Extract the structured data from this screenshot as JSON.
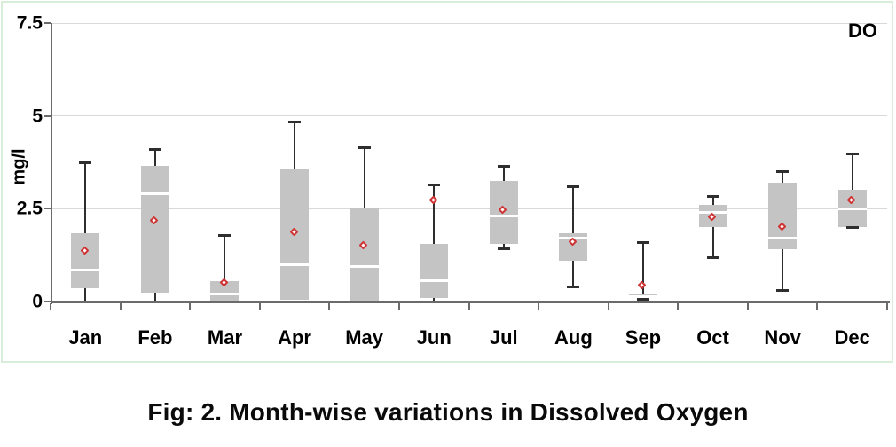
{
  "figure": {
    "caption": "Fig: 2. Month-wise variations in Dissolved Oxygen"
  },
  "chart_data": {
    "type": "boxplot",
    "series_label": "DO",
    "ylabel": "mg/l",
    "ylim": [
      0,
      7.5
    ],
    "yticks": [
      0,
      2.5,
      5,
      7.5
    ],
    "ytick_labels": [
      "0",
      "2.5",
      "5",
      "7.5"
    ],
    "grid": "horizontal-light",
    "legend_position": "top-right-inside",
    "categories": [
      "Jan",
      "Feb",
      "Mar",
      "Apr",
      "May",
      "Jun",
      "Jul",
      "Aug",
      "Sep",
      "Oct",
      "Nov",
      "Dec"
    ],
    "boxes": [
      {
        "month": "Jan",
        "low": 0.02,
        "q1": 0.35,
        "median": 0.85,
        "q3": 1.85,
        "high": 3.75,
        "mean": 1.35,
        "lo_cap": false
      },
      {
        "month": "Feb",
        "low": 0.02,
        "q1": 0.25,
        "median": 2.9,
        "q3": 3.65,
        "high": 4.1,
        "mean": 2.15,
        "lo_cap": false
      },
      {
        "month": "Mar",
        "low": 0.02,
        "q1": 0.02,
        "median": 0.2,
        "q3": 0.55,
        "high": 1.8,
        "mean": 0.5,
        "lo_cap": false
      },
      {
        "month": "Apr",
        "low": 0.05,
        "q1": 0.05,
        "median": 1.0,
        "q3": 3.55,
        "high": 4.85,
        "mean": 1.85,
        "lo_cap": false
      },
      {
        "month": "May",
        "low": 0.02,
        "q1": 0.02,
        "median": 0.95,
        "q3": 2.5,
        "high": 4.15,
        "mean": 1.5,
        "lo_cap": false
      },
      {
        "month": "Jun",
        "low": 0.02,
        "q1": 0.1,
        "median": 0.55,
        "q3": 1.55,
        "high": 3.15,
        "mean": 2.7,
        "lo_cap": false
      },
      {
        "month": "Jul",
        "low": 1.43,
        "q1": 1.55,
        "median": 2.3,
        "q3": 3.25,
        "high": 3.65,
        "mean": 2.45,
        "lo_cap": true
      },
      {
        "month": "Aug",
        "low": 0.4,
        "q1": 1.1,
        "median": 1.7,
        "q3": 1.85,
        "high": 3.1,
        "mean": 1.6,
        "lo_cap": true
      },
      {
        "month": "Sep",
        "low": 0.06,
        "q1": 0.1,
        "median": 0.14,
        "q3": 0.18,
        "high": 1.6,
        "mean": 0.42,
        "lo_cap": true
      },
      {
        "month": "Oct",
        "low": 1.2,
        "q1": 2.0,
        "median": 2.4,
        "q3": 2.6,
        "high": 2.85,
        "mean": 2.25,
        "lo_cap": true
      },
      {
        "month": "Nov",
        "low": 0.3,
        "q1": 1.4,
        "median": 1.7,
        "q3": 3.2,
        "high": 3.5,
        "mean": 2.0,
        "lo_cap": true
      },
      {
        "month": "Dec",
        "low": 2.0,
        "q1": 2.0,
        "median": 2.5,
        "q3": 3.0,
        "high": 4.0,
        "mean": 2.7,
        "lo_cap": true
      }
    ],
    "colors": {
      "box_fill": "#c4c4c4",
      "median_line": "#ffffff",
      "whisker": "#2e2e2e",
      "mean_marker": "#cf3434",
      "gridline": "#d9d9d9",
      "axis": "#6b6b6b",
      "frame_border": "#d9eed9",
      "text": "#000000"
    }
  }
}
